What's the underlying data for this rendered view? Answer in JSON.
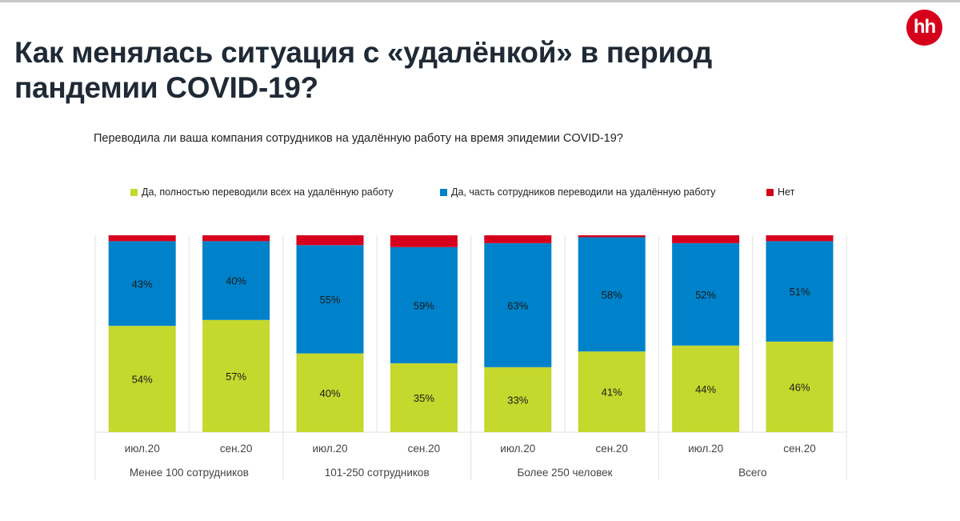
{
  "title": "Как менялась ситуация с «удалёнкой» в период пандемии COVID-19?",
  "logo_text": "hh",
  "chart_data": {
    "type": "bar",
    "stacked": true,
    "title": "Переводила ли ваша компания сотрудников на удалённую работу на время эпидемии COVID-19?",
    "groups": [
      "Менее 100 сотрудников",
      "101-250 сотрудников",
      "Более 250 человек",
      "Всего"
    ],
    "categories": [
      "июл.20",
      "сен.20",
      "июл.20",
      "сен.20",
      "июл.20",
      "сен.20",
      "июл.20",
      "сен.20"
    ],
    "series": [
      {
        "name": "Да, полностью переводили всех на удалённую работу",
        "color": "#c4d82e",
        "values": [
          54,
          57,
          40,
          35,
          33,
          41,
          44,
          46
        ],
        "labels": [
          "54%",
          "57%",
          "40%",
          "35%",
          "33%",
          "41%",
          "44%",
          "46%"
        ]
      },
      {
        "name": "Да, часть сотрудников переводили на удалённую работу",
        "color": "#0082ca",
        "values": [
          43,
          40,
          55,
          59,
          63,
          58,
          52,
          51
        ],
        "labels": [
          "43%",
          "40%",
          "55%",
          "59%",
          "63%",
          "58%",
          "52%",
          "51%"
        ]
      },
      {
        "name": "Нет",
        "color": "#d6001c",
        "values": [
          3,
          3,
          5,
          6,
          4,
          1,
          4,
          3
        ]
      }
    ],
    "ylim": [
      0,
      100
    ],
    "legend": "top"
  }
}
